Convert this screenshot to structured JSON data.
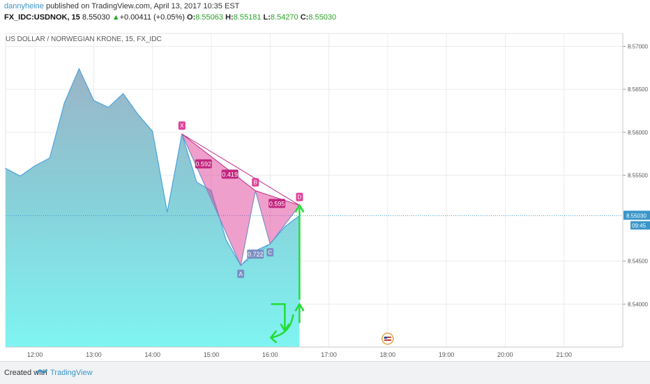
{
  "header": {
    "author": "dannyheine",
    "published_text": " published on TradingView.com, April 13, 2017 10:35 EST",
    "symbol": "FX_IDC:USDNOK, 15",
    "last": "8.55030",
    "change": "+0.00411 (+0.05%)",
    "o_label": "O:",
    "o_value": "8.55063",
    "h_label": "H:",
    "h_value": "8.55181",
    "l_label": "L:",
    "l_value": "8.54270",
    "c_label": "C:",
    "c_value": "8.55030"
  },
  "footer": {
    "created_with": "Created with",
    "brand": "TradingView"
  },
  "colors": {
    "line": "#4aa3df",
    "price_line": "#3a95c9",
    "pattern_fill": "#e0409a",
    "pattern_stroke": "#c2257f",
    "pattern_blue": "#7a8fc4",
    "arrow": "#22dd33"
  },
  "chart_data": {
    "type": "area",
    "title": "US DOLLAR / NORWEGIAN KRONE, 15, FX_IDC",
    "x_ticks": [
      "12:00",
      "13:00",
      "14:00",
      "15:00",
      "16:00",
      "17:00",
      "18:00",
      "19:00",
      "20:00",
      "21:00"
    ],
    "y_ticks": [
      "8.57000",
      "8.56500",
      "8.56000",
      "8.55500",
      "8.54500",
      "8.54000"
    ],
    "ylim": [
      8.535,
      8.5715
    ],
    "xlim": [
      "11:30",
      "22:00"
    ],
    "grid": true,
    "series": [
      {
        "x": [
          "11:30",
          "11:45",
          "12:00",
          "12:15",
          "12:30",
          "12:45",
          "13:00",
          "13:15",
          "13:30",
          "13:45",
          "14:00",
          "14:15",
          "14:30",
          "14:45",
          "15:00",
          "15:15",
          "15:30",
          "15:45",
          "16:00",
          "16:15",
          "16:30"
        ],
        "values": [
          8.5558,
          8.5549,
          8.5561,
          8.557,
          8.5634,
          8.5674,
          8.5637,
          8.5629,
          8.5645,
          8.5621,
          8.5601,
          8.5507,
          8.5598,
          8.5542,
          8.5532,
          8.5475,
          8.5445,
          8.5462,
          8.547,
          8.549,
          8.5503
        ]
      }
    ],
    "last_price": "8.55030",
    "last_time": "09:45",
    "pattern": {
      "points": [
        {
          "label": "X",
          "time": "14:30",
          "price": 8.5598
        },
        {
          "label": "A",
          "time": "15:30",
          "price": 8.5445
        },
        {
          "label": "B",
          "time": "15:45",
          "price": 8.5532
        },
        {
          "label": "C",
          "time": "16:00",
          "price": 8.547
        },
        {
          "label": "D",
          "time": "16:30",
          "price": 8.5515
        }
      ],
      "ratios": [
        {
          "text": "0.592",
          "time": "14:52",
          "price": 8.5562,
          "color": "pink"
        },
        {
          "text": "0.419",
          "time": "15:19",
          "price": 8.555,
          "color": "pink"
        },
        {
          "text": "0.595",
          "time": "16:07",
          "price": 8.5516,
          "color": "pink"
        },
        {
          "text": "0.722",
          "time": "15:45",
          "price": 8.5457,
          "color": "blue"
        }
      ]
    },
    "annotations": [
      "arrow-up",
      "arrow-down"
    ]
  }
}
